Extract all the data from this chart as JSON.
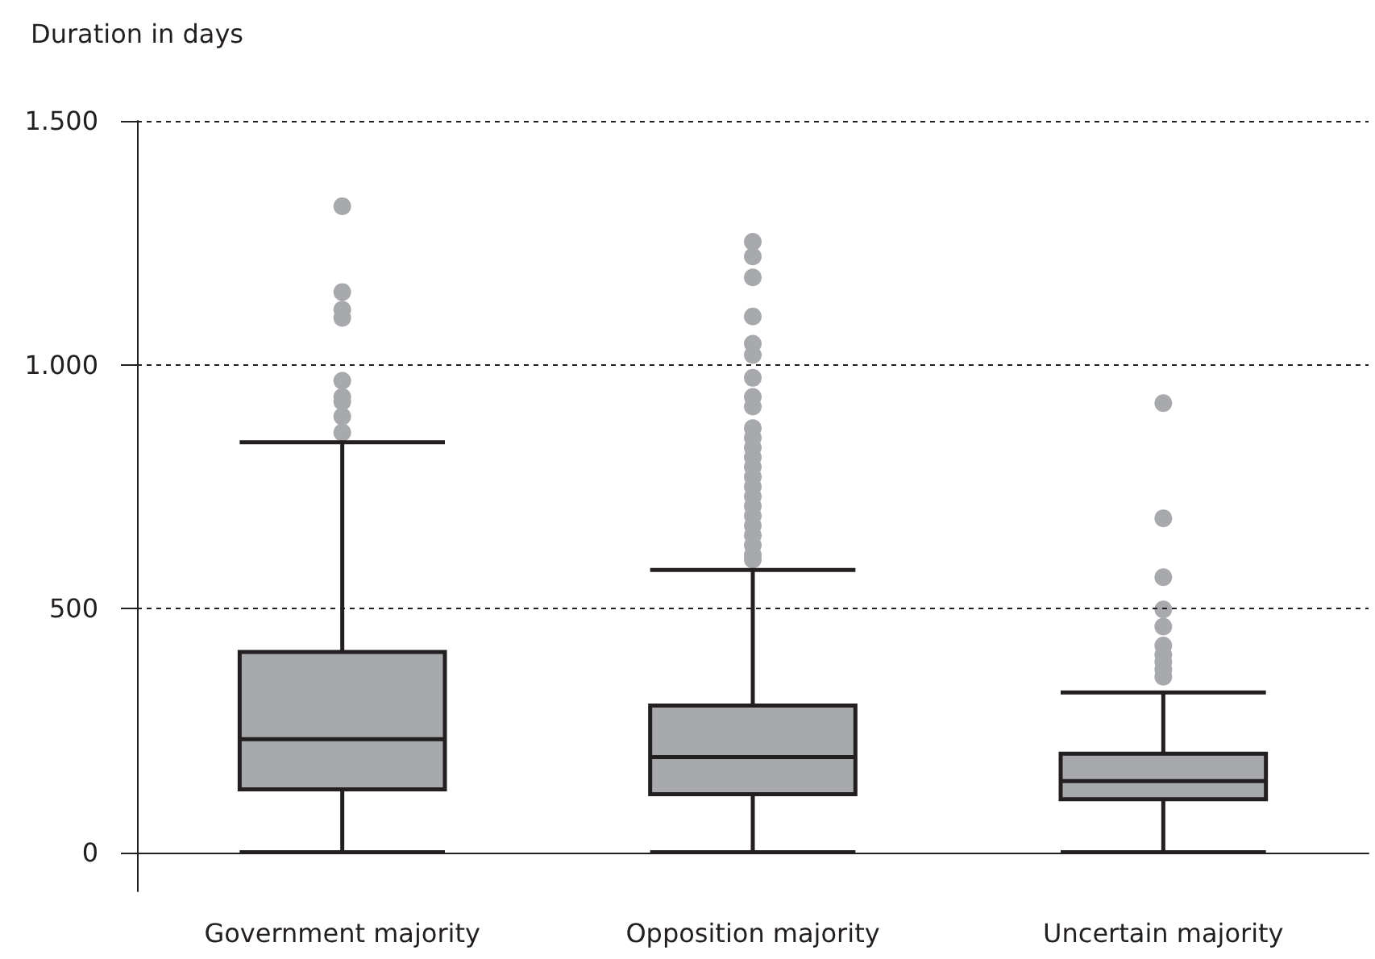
{
  "chart_data": {
    "type": "box",
    "ylabel": "Duration in days",
    "categories": [
      "Government majority",
      "Opposition majority",
      "Uncertain majority"
    ],
    "color": "#a7a9ac",
    "boxes": [
      {
        "low": 0,
        "q1": 129,
        "median": 232,
        "q3": 411,
        "high": 841,
        "outliers": [
          861,
          894,
          924,
          934,
          967,
          1096,
          1113,
          1149,
          1325
        ]
      },
      {
        "low": 0,
        "q1": 119,
        "median": 195,
        "q3": 301,
        "high": 579,
        "outliers": [
          600,
          610,
          630,
          650,
          670,
          690,
          710,
          730,
          750,
          770,
          790,
          810,
          830,
          850,
          870,
          914,
          934,
          973,
          1020,
          1043,
          1099,
          1179,
          1222,
          1252
        ]
      },
      {
        "low": 0,
        "q1": 109,
        "median": 146,
        "q3": 202,
        "high": 328,
        "outliers": [
          360,
          375,
          390,
          405,
          424,
          463,
          498,
          564,
          685,
          921
        ]
      }
    ],
    "ylim": [
      -80,
      1500
    ],
    "yticks": [
      0,
      500,
      {
        "value": 1000,
        "label": "1.000"
      },
      {
        "value": 1500,
        "label": "1.500"
      }
    ],
    "grid": "y"
  }
}
